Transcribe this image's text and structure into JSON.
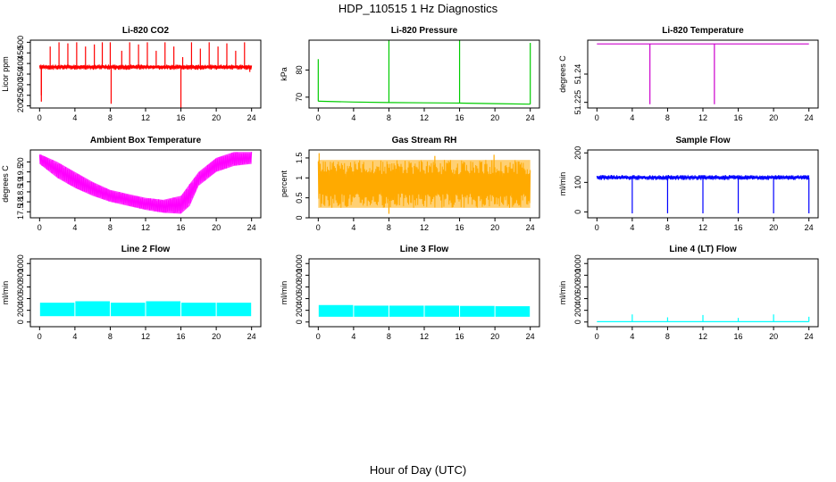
{
  "figure": {
    "suptitle": "HDP_110515  1 Hz Diagnostics",
    "xlabel": "Hour of Day (UTC)"
  },
  "chart_data": [
    {
      "type": "line",
      "title": "Li-820 CO2",
      "ylabel": "Licor ppm",
      "color": "#ff0000",
      "xlim": [
        0,
        24
      ],
      "ylim": [
        190,
        510
      ],
      "xticks": [
        0,
        4,
        8,
        12,
        16,
        20,
        24
      ],
      "yticks": [
        200,
        250,
        300,
        350,
        400,
        450,
        500
      ],
      "series": [
        {
          "baseline": 385,
          "band": [
            370,
            395
          ],
          "spikes": [
            [
              0.2,
              250
            ],
            [
              0.2,
              220
            ],
            [
              1.2,
              480
            ],
            [
              2.2,
              500
            ],
            [
              3.2,
              495
            ],
            [
              4.2,
              500
            ],
            [
              5.2,
              480
            ],
            [
              6.2,
              490
            ],
            [
              7.1,
              500
            ],
            [
              8.0,
              500
            ],
            [
              8.1,
              210
            ],
            [
              9.3,
              460
            ],
            [
              10.2,
              500
            ],
            [
              11.2,
              490
            ],
            [
              12.2,
              500
            ],
            [
              13.2,
              460
            ],
            [
              14.2,
              500
            ],
            [
              15.2,
              480
            ],
            [
              16.0,
              190
            ],
            [
              16.2,
              430
            ],
            [
              17.2,
              500
            ],
            [
              18.2,
              470
            ],
            [
              19.2,
              500
            ],
            [
              20.2,
              480
            ],
            [
              21.2,
              495
            ],
            [
              22.2,
              460
            ],
            [
              23.2,
              500
            ],
            [
              23.8,
              360
            ]
          ]
        }
      ]
    },
    {
      "type": "line",
      "title": "Li-820 Pressure",
      "ylabel": "kPa",
      "color": "#00cc00",
      "xlim": [
        0,
        24
      ],
      "ylim": [
        66,
        91
      ],
      "xticks": [
        0,
        4,
        8,
        12,
        16,
        20,
        24
      ],
      "yticks": [
        70,
        80
      ],
      "series": [
        {
          "points": [
            [
              0,
              68.5
            ],
            [
              4,
              68.2
            ],
            [
              8,
              68.0
            ],
            [
              12,
              67.9
            ],
            [
              16,
              67.8
            ],
            [
              20,
              67.6
            ],
            [
              24,
              67.4
            ]
          ],
          "spikes": [
            [
              0.0,
              84
            ],
            [
              8.0,
              91
            ],
            [
              16.0,
              91
            ],
            [
              24.0,
              90
            ]
          ]
        }
      ]
    },
    {
      "type": "line",
      "title": "Li-820 Temperature",
      "ylabel": "degrees C",
      "color": "#cc00cc",
      "xlim": [
        0,
        24
      ],
      "ylim": [
        51.222,
        51.258
      ],
      "xticks": [
        0,
        4,
        8,
        12,
        16,
        20,
        24
      ],
      "yticks": [
        51.225,
        51.24
      ],
      "series": [
        {
          "points": [
            [
              0,
              51.256
            ],
            [
              24,
              51.256
            ]
          ],
          "spikes": [
            [
              6.0,
              51.224
            ],
            [
              13.3,
              51.224
            ]
          ]
        }
      ]
    },
    {
      "type": "line",
      "title": "Ambient Box Temperature",
      "ylabel": "degrees C",
      "color": "#ff00ff",
      "xlim": [
        0,
        24
      ],
      "ylim": [
        17.2,
        20.6
      ],
      "xticks": [
        0,
        4,
        8,
        12,
        16,
        20,
        24
      ],
      "yticks": [
        17.5,
        18.0,
        18.5,
        19.0,
        19.5,
        20.0
      ],
      "series": [
        {
          "upper": [
            [
              0,
              20.4
            ],
            [
              2,
              20.0
            ],
            [
              4,
              19.5
            ],
            [
              6,
              19.0
            ],
            [
              8,
              18.6
            ],
            [
              10,
              18.4
            ],
            [
              12,
              18.2
            ],
            [
              14,
              18.1
            ],
            [
              16,
              18.3
            ],
            [
              18,
              19.5
            ],
            [
              20,
              20.2
            ],
            [
              22,
              20.5
            ],
            [
              24,
              20.5
            ]
          ],
          "lower": [
            [
              0,
              19.9
            ],
            [
              2,
              19.2
            ],
            [
              4,
              18.7
            ],
            [
              6,
              18.3
            ],
            [
              8,
              18.0
            ],
            [
              10,
              17.8
            ],
            [
              12,
              17.6
            ],
            [
              14,
              17.45
            ],
            [
              16,
              17.4
            ],
            [
              17,
              17.8
            ],
            [
              18,
              18.8
            ],
            [
              20,
              19.5
            ],
            [
              22,
              19.8
            ],
            [
              24,
              19.9
            ]
          ]
        }
      ]
    },
    {
      "type": "area",
      "title": "Gas Stream RH",
      "ylabel": "percent",
      "color": "#ffaa00",
      "xlim": [
        0,
        24
      ],
      "ylim": [
        0,
        1.7
      ],
      "xticks": [
        0,
        4,
        8,
        12,
        16,
        20,
        24
      ],
      "yticks": [
        0.0,
        0.5,
        1.0,
        1.5
      ],
      "series": [
        {
          "band": [
            0.25,
            1.45
          ],
          "spikes": [
            [
              0.1,
              1.62
            ],
            [
              8.0,
              0.1
            ],
            [
              13.2,
              1.55
            ],
            [
              19.9,
              1.58
            ]
          ]
        }
      ]
    },
    {
      "type": "line",
      "title": "Sample Flow",
      "ylabel": "ml/min",
      "color": "#0000ff",
      "xlim": [
        0,
        24
      ],
      "ylim": [
        -20,
        210
      ],
      "xticks": [
        0,
        4,
        8,
        12,
        16,
        20,
        24
      ],
      "yticks": [
        0,
        100,
        200
      ],
      "series": [
        {
          "band": [
            108,
            125
          ],
          "spikes": [
            [
              4.0,
              -5
            ],
            [
              8.0,
              -5
            ],
            [
              12.0,
              -5
            ],
            [
              16.0,
              -5
            ],
            [
              20.0,
              -5
            ],
            [
              24.0,
              -5
            ]
          ]
        }
      ]
    },
    {
      "type": "area",
      "title": "Line 2 Flow",
      "ylabel": "ml/min",
      "color": "#00ffff",
      "xlim": [
        0,
        24
      ],
      "ylim": [
        -80,
        1080
      ],
      "xticks": [
        0,
        4,
        8,
        12,
        16,
        20,
        24
      ],
      "yticks": [
        0,
        200,
        400,
        600,
        800,
        1000
      ],
      "series": [
        {
          "band": [
            100,
            330
          ],
          "segments": [
            [
              0,
              330
            ],
            [
              4,
              355
            ],
            [
              8,
              330
            ],
            [
              12,
              355
            ],
            [
              16,
              330
            ],
            [
              20,
              330
            ],
            [
              24,
              330
            ]
          ]
        }
      ]
    },
    {
      "type": "area",
      "title": "Line 3 Flow",
      "ylabel": "ml/min",
      "color": "#00ffff",
      "xlim": [
        0,
        24
      ],
      "ylim": [
        -80,
        1080
      ],
      "xticks": [
        0,
        4,
        8,
        12,
        16,
        20,
        24
      ],
      "yticks": [
        0,
        200,
        400,
        600,
        800,
        1000
      ],
      "series": [
        {
          "band": [
            90,
            280
          ],
          "segments": [
            [
              0,
              290
            ],
            [
              4,
              280
            ],
            [
              8,
              280
            ],
            [
              12,
              280
            ],
            [
              16,
              275
            ],
            [
              20,
              270
            ],
            [
              24,
              270
            ]
          ]
        }
      ]
    },
    {
      "type": "line",
      "title": "Line 4 (LT) Flow",
      "ylabel": "ml/min",
      "color": "#00ffff",
      "xlim": [
        0,
        24
      ],
      "ylim": [
        -80,
        1080
      ],
      "xticks": [
        0,
        4,
        8,
        12,
        16,
        20,
        24
      ],
      "yticks": [
        0,
        200,
        400,
        600,
        800,
        1000
      ],
      "series": [
        {
          "points": [
            [
              0,
              5
            ],
            [
              24,
              5
            ]
          ],
          "spikes": [
            [
              4.0,
              130
            ],
            [
              8.0,
              80
            ],
            [
              12.0,
              120
            ],
            [
              16.0,
              70
            ],
            [
              20.0,
              130
            ],
            [
              24.0,
              90
            ]
          ]
        }
      ]
    }
  ]
}
